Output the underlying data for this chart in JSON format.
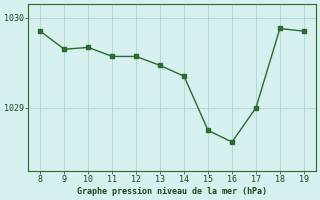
{
  "x": [
    8,
    9,
    10,
    11,
    12,
    13,
    14,
    15,
    16,
    17,
    18,
    19
  ],
  "y": [
    1029.85,
    1029.65,
    1029.67,
    1029.57,
    1029.57,
    1029.47,
    1029.35,
    1028.75,
    1028.62,
    1029.0,
    1029.88,
    1029.85
  ],
  "xlim": [
    7.5,
    19.5
  ],
  "ylim": [
    1028.3,
    1030.15
  ],
  "yticks": [
    1029,
    1030
  ],
  "xticks": [
    8,
    9,
    10,
    11,
    12,
    13,
    14,
    15,
    16,
    17,
    18,
    19
  ],
  "line_color": "#2d6a2d",
  "marker_color": "#2d6a2d",
  "bg_color": "#d6f0f0",
  "grid_color": "#aacccc",
  "xlabel": "Graphe pression niveau de la mer (hPa)",
  "xlabel_color": "#1a4a1a",
  "tick_color": "#1a4a1a",
  "spine_color": "#2d6a2d"
}
